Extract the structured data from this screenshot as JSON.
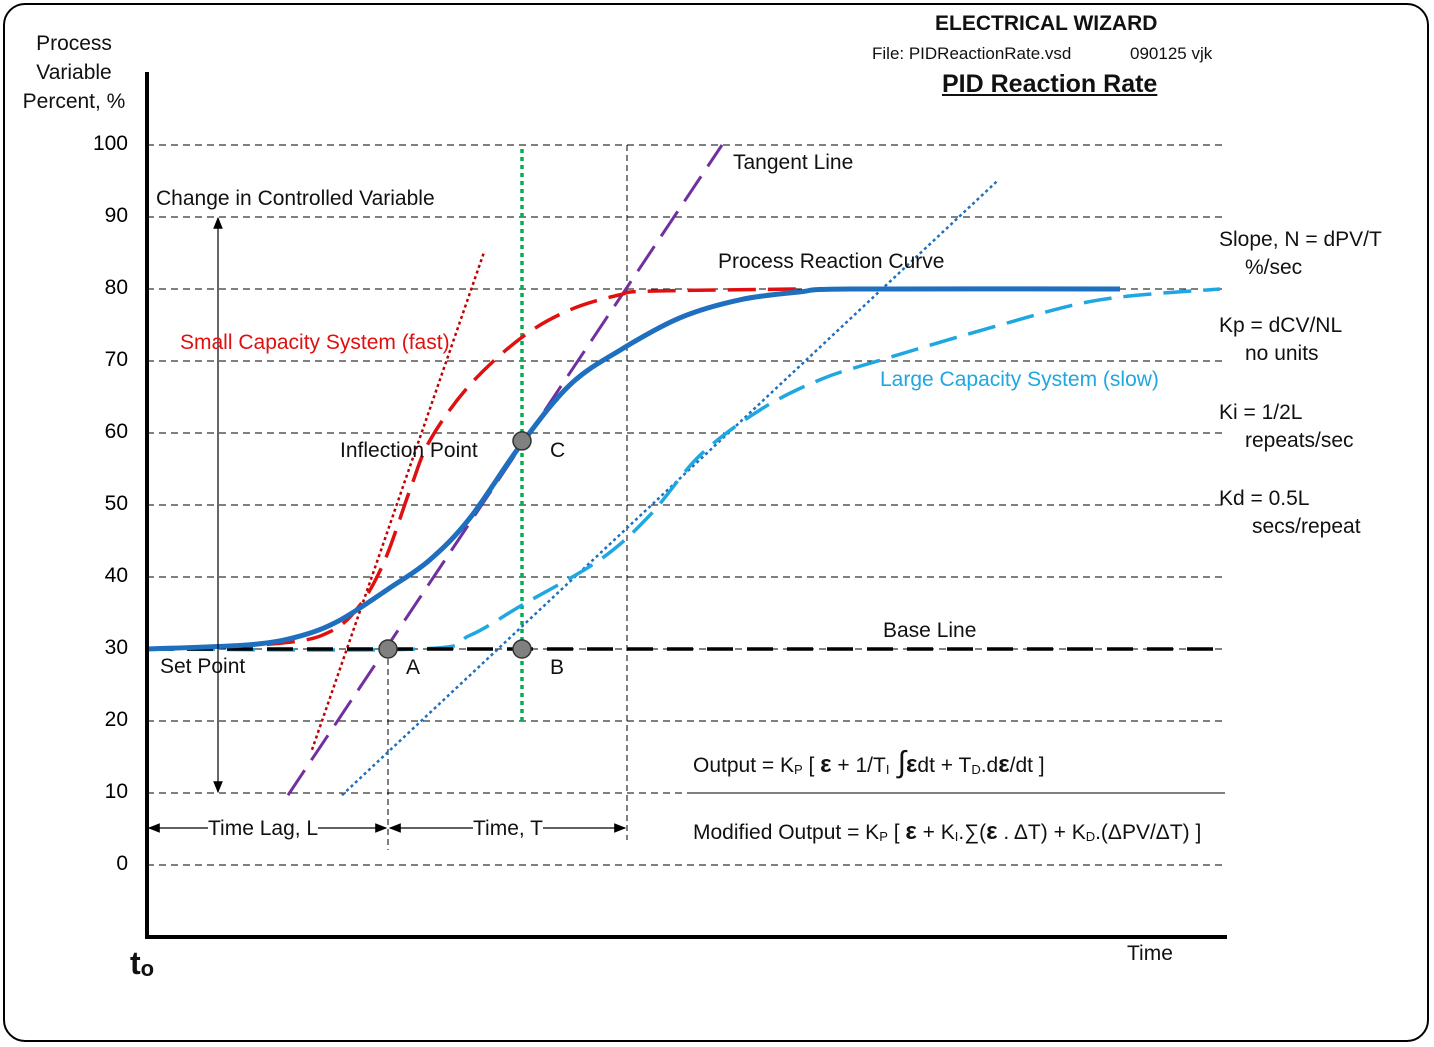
{
  "header": {
    "company": "ELECTRICAL WIZARD",
    "file": "File: PIDReactionRate.vsd",
    "version": "090125 vjk",
    "title": "PID Reaction Rate"
  },
  "axes": {
    "ylabel_lines": [
      "Process",
      "Variable",
      "Percent, %"
    ],
    "xlabel": "Time",
    "origin_label": "t",
    "origin_sub": "o"
  },
  "labels": {
    "change_cv": "Change in Controlled Variable",
    "tangent": "Tangent Line",
    "process_curve": "Process Reaction Curve",
    "small_capacity": "Small Capacity System (fast)",
    "large_capacity": "Large Capacity System (slow)",
    "inflection": "Inflection Point",
    "point_a": "A",
    "point_b": "B",
    "point_c": "C",
    "base_line": "Base Line",
    "set_point": "Set Point",
    "time_lag": "Time Lag, L",
    "time_t": "Time, T"
  },
  "notes": {
    "slope": "Slope, N = dPV/T",
    "slope_units": "%/sec",
    "kp": "Kp = dCV/NL",
    "kp_units": "no units",
    "ki": "Ki = 1/2L",
    "ki_units": "repeats/sec",
    "kd": "Kd = 0.5L",
    "kd_units": "secs/repeat"
  },
  "formulas": {
    "output": {
      "a": "Output = K",
      "p": "P",
      "b": " [ ",
      "e": "ε",
      "c": " + 1/T",
      "i": "I",
      "d": " ∫",
      "e2": "ε",
      "f": "dt + T",
      "dsub": "D",
      "g": ".d",
      "e3": "ε",
      "h": "/dt ]"
    },
    "modified": {
      "a": "Modified Output = K",
      "p": "P",
      "b": " [ ",
      "e": "ε",
      "c": " + K",
      "i": "I",
      "d": ".∑(",
      "e2": "ε",
      "f": " . ΔT) + K",
      "dsub": "D",
      "g": ".(ΔPV/ΔT) ]"
    }
  },
  "colors": {
    "process": "#1f6fbf",
    "fast": "#e01010",
    "slow": "#1ea7e0",
    "tangent": "#7030a0",
    "fast_tangent": "#c00000",
    "slow_tangent": "#1f6fbf",
    "inflection_vertical": "#00b050",
    "points": "#808080"
  },
  "chart_data": {
    "type": "line",
    "ylabel": "Process Variable Percent, %",
    "xlabel": "Time",
    "ylim": [
      0,
      100
    ],
    "xlim": [
      0,
      108
    ],
    "yticks": [
      "100",
      "90",
      "80",
      "70",
      "60",
      "50",
      "40",
      "30",
      "20",
      "10",
      "0"
    ],
    "grid": true,
    "series": [
      {
        "name": "Process Reaction Curve",
        "style": "solid",
        "color_key": "process",
        "points": [
          [
            0,
            30
          ],
          [
            10.3,
            30.6
          ],
          [
            15.3,
            31.8
          ],
          [
            19.3,
            34
          ],
          [
            24.3,
            38.5
          ],
          [
            28.3,
            42.4
          ],
          [
            32.3,
            48.2
          ],
          [
            37.5,
            58.6
          ],
          [
            42.3,
            66.7
          ],
          [
            47.3,
            71.5
          ],
          [
            53.3,
            76
          ],
          [
            59.3,
            78.5
          ],
          [
            65.3,
            79.6
          ],
          [
            70.3,
            80
          ],
          [
            97.3,
            80
          ]
        ]
      },
      {
        "name": "Small Capacity System (fast)",
        "style": "dashed",
        "color_key": "fast",
        "points": [
          [
            0,
            30
          ],
          [
            13.3,
            30.8
          ],
          [
            18.3,
            32.4
          ],
          [
            21.3,
            36.1
          ],
          [
            23.8,
            42.4
          ],
          [
            26.3,
            52.1
          ],
          [
            28.3,
            59
          ],
          [
            32.3,
            66.7
          ],
          [
            37.5,
            73.3
          ],
          [
            42.3,
            77.1
          ],
          [
            47.3,
            79.2
          ],
          [
            50.3,
            79.7
          ],
          [
            65.3,
            80
          ]
        ]
      },
      {
        "name": "Large Capacity System (slow)",
        "style": "dashed",
        "color_key": "slow",
        "points": [
          [
            0,
            30
          ],
          [
            27.3,
            30
          ],
          [
            32.3,
            31.9
          ],
          [
            37.5,
            36.1
          ],
          [
            45.3,
            42.4
          ],
          [
            50.3,
            48.6
          ],
          [
            55.3,
            56.9
          ],
          [
            61.3,
            63.2
          ],
          [
            67.3,
            67.4
          ],
          [
            73.3,
            70.1
          ],
          [
            85.3,
            75
          ],
          [
            95.3,
            78.5
          ],
          [
            107.3,
            80
          ]
        ]
      },
      {
        "name": "Tangent Line",
        "style": "longdash",
        "color_key": "tangent",
        "points": [
          [
            14.1,
            9.7
          ],
          [
            57.5,
            100
          ]
        ]
      },
      {
        "name": "Fast tangent",
        "style": "dotted",
        "color_key": "fast_tangent",
        "points": [
          [
            16.5,
            16
          ],
          [
            33.7,
            85.1
          ]
        ]
      },
      {
        "name": "Slow tangent",
        "style": "dotted",
        "color_key": "slow_tangent",
        "points": [
          [
            19.5,
            9.7
          ],
          [
            85.1,
            95.1
          ]
        ]
      },
      {
        "name": "Base Line",
        "style": "bigdash",
        "color_key": "black",
        "points": [
          [
            0,
            30
          ],
          [
            106.8,
            30
          ]
        ]
      },
      {
        "name": "Inflection vertical",
        "style": "dotted-green",
        "color_key": "inflection_vertical",
        "points": [
          [
            37.5,
            20
          ],
          [
            37.5,
            100
          ]
        ]
      }
    ],
    "markers": [
      {
        "label": "A",
        "t": 24.1,
        "pv": 30
      },
      {
        "label": "B",
        "t": 37.5,
        "pv": 30
      },
      {
        "label": "C",
        "t": 37.5,
        "pv": 58.9
      }
    ],
    "time_lag_end": 24.1,
    "time_t_end": 48
  }
}
